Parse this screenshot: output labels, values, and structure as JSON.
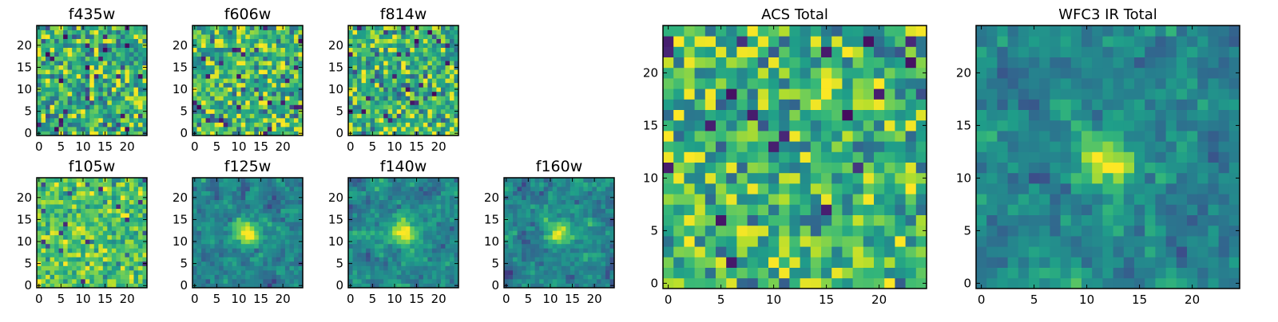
{
  "chart_data": [
    {
      "type": "heatmap",
      "title": "f435w",
      "colormap": "viridis",
      "grid_size": [
        25,
        25
      ],
      "xlim": [
        0,
        24
      ],
      "ylim": [
        0,
        24
      ],
      "x_ticks": [
        0,
        5,
        10,
        15,
        20
      ],
      "y_ticks": [
        0,
        5,
        10,
        15,
        20
      ],
      "pattern": "uniform noise",
      "seed": 11
    },
    {
      "type": "heatmap",
      "title": "f606w",
      "colormap": "viridis",
      "grid_size": [
        25,
        25
      ],
      "xlim": [
        0,
        24
      ],
      "ylim": [
        0,
        24
      ],
      "x_ticks": [
        0,
        5,
        10,
        15,
        20
      ],
      "y_ticks": [
        0,
        5,
        10,
        15,
        20
      ],
      "pattern": "uniform noise",
      "seed": 23
    },
    {
      "type": "heatmap",
      "title": "f814w",
      "colormap": "viridis",
      "grid_size": [
        25,
        25
      ],
      "xlim": [
        0,
        24
      ],
      "ylim": [
        0,
        24
      ],
      "x_ticks": [
        0,
        5,
        10,
        15,
        20
      ],
      "y_ticks": [
        0,
        5,
        10,
        15,
        20
      ],
      "pattern": "uniform noise",
      "seed": 37
    },
    {
      "type": "heatmap",
      "title": "f105w",
      "colormap": "viridis",
      "grid_size": [
        25,
        25
      ],
      "xlim": [
        0,
        24
      ],
      "ylim": [
        0,
        24
      ],
      "x_ticks": [
        0,
        5,
        10,
        15,
        20
      ],
      "y_ticks": [
        0,
        5,
        10,
        15,
        20
      ],
      "pattern": "bright noisy field",
      "seed": 41
    },
    {
      "type": "heatmap",
      "title": "f125w",
      "colormap": "viridis",
      "grid_size": [
        25,
        25
      ],
      "xlim": [
        0,
        24
      ],
      "ylim": [
        0,
        24
      ],
      "x_ticks": [
        0,
        5,
        10,
        15,
        20
      ],
      "y_ticks": [
        0,
        5,
        10,
        15,
        20
      ],
      "pattern": "central source",
      "source_center": [
        12,
        12
      ],
      "seed": 53
    },
    {
      "type": "heatmap",
      "title": "f140w",
      "colormap": "viridis",
      "grid_size": [
        25,
        25
      ],
      "xlim": [
        0,
        24
      ],
      "ylim": [
        0,
        24
      ],
      "x_ticks": [
        0,
        5,
        10,
        15,
        20
      ],
      "y_ticks": [
        0,
        5,
        10,
        15,
        20
      ],
      "pattern": "central source",
      "source_center": [
        12,
        12
      ],
      "seed": 67
    },
    {
      "type": "heatmap",
      "title": "f160w",
      "colormap": "viridis",
      "grid_size": [
        25,
        25
      ],
      "xlim": [
        0,
        24
      ],
      "ylim": [
        0,
        24
      ],
      "x_ticks": [
        0,
        5,
        10,
        15,
        20
      ],
      "y_ticks": [
        0,
        5,
        10,
        15,
        20
      ],
      "pattern": "central source",
      "source_center": [
        12,
        12
      ],
      "seed": 79
    },
    {
      "type": "heatmap",
      "title": "ACS Total",
      "colormap": "viridis",
      "grid_size": [
        25,
        25
      ],
      "xlim": [
        0,
        24
      ],
      "ylim": [
        0,
        24
      ],
      "x_ticks": [
        0,
        5,
        10,
        15,
        20
      ],
      "y_ticks": [
        0,
        5,
        10,
        15,
        20
      ],
      "pattern": "uniform noise",
      "seed": 97
    },
    {
      "type": "heatmap",
      "title": "WFC3 IR Total",
      "colormap": "viridis",
      "grid_size": [
        25,
        25
      ],
      "xlim": [
        0,
        24
      ],
      "ylim": [
        0,
        24
      ],
      "x_ticks": [
        0,
        5,
        10,
        15,
        20
      ],
      "y_ticks": [
        0,
        5,
        10,
        15,
        20
      ],
      "pattern": "central source",
      "source_center": [
        12,
        12
      ],
      "seed": 113
    }
  ]
}
